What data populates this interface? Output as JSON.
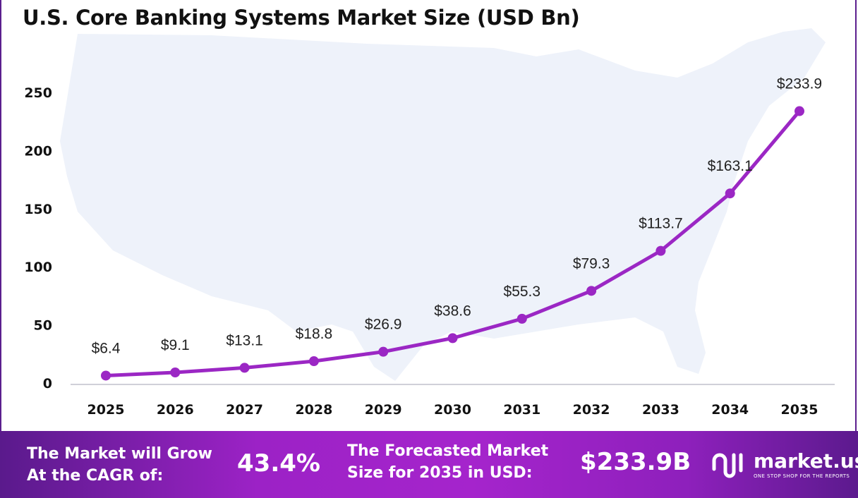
{
  "chart_data": {
    "type": "line",
    "title": "U.S. Core Banking Systems Market Size (USD Bn)",
    "categories": [
      "2025",
      "2026",
      "2027",
      "2028",
      "2029",
      "2030",
      "2031",
      "2032",
      "2033",
      "2034",
      "2035"
    ],
    "values": [
      6.4,
      9.1,
      13.1,
      18.8,
      26.9,
      38.6,
      55.3,
      79.3,
      113.7,
      163.1,
      233.9
    ],
    "data_labels": [
      "$6.4",
      "$9.1",
      "$13.1",
      "$18.8",
      "$26.9",
      "$38.6",
      "$55.3",
      "$79.3",
      "$113.7",
      "$163.1",
      "$233.9"
    ],
    "yticks": [
      "0",
      "50",
      "100",
      "150",
      "200",
      "250"
    ],
    "ylim": [
      0,
      250
    ],
    "xlabel": "",
    "ylabel": "",
    "grid": false,
    "line_color": "#9b27c4",
    "background": "U.S. map silhouette"
  },
  "footer": {
    "cagr_label": [
      "The Market will Grow",
      "At the CAGR of:"
    ],
    "cagr_value": "43.4%",
    "forecast_label": [
      "The Forecasted Market",
      "Size for 2035 in USD:"
    ],
    "forecast_value": "$233.9B",
    "logo": {
      "name": "market.us",
      "tagline": "ONE STOP SHOP FOR THE REPORTS"
    }
  }
}
